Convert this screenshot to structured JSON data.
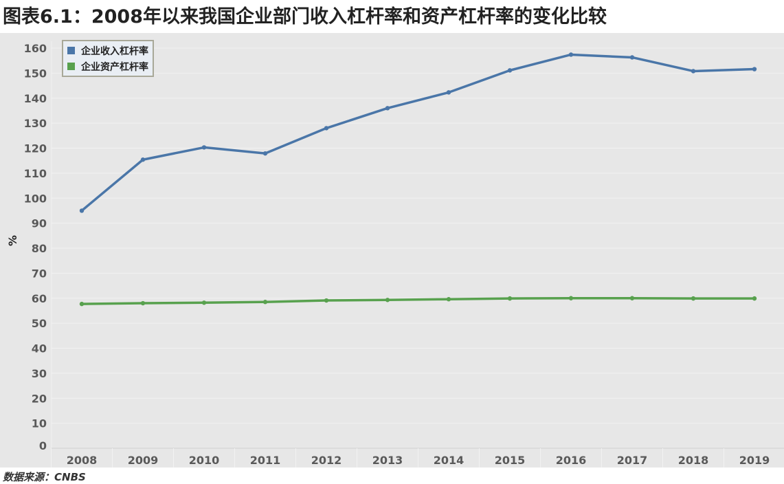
{
  "title": "图表6.1：2008年以来我国企业部门收入杠杆率和资产杠杆率的变化比较",
  "source": "数据来源：CNBS",
  "chart_data": {
    "type": "line",
    "title": "图表6.1：2008年以来我国企业部门收入杠杆率和资产杠杆率的变化比较",
    "xlabel": "",
    "ylabel": "%",
    "ylim": [
      0,
      160
    ],
    "yticks": [
      0,
      10,
      20,
      30,
      40,
      50,
      60,
      70,
      80,
      90,
      100,
      110,
      120,
      130,
      140,
      150,
      160
    ],
    "categories": [
      "2008",
      "2009",
      "2010",
      "2011",
      "2012",
      "2013",
      "2014",
      "2015",
      "2016",
      "2017",
      "2018",
      "2019"
    ],
    "grid": true,
    "legend_position": "top-left",
    "series": [
      {
        "name": "企业收入杠杆率",
        "color": "#4a76a8",
        "values": [
          95.0,
          115.4,
          120.3,
          117.9,
          128.0,
          136.0,
          142.3,
          151.1,
          157.4,
          156.3,
          150.8,
          151.6
        ]
      },
      {
        "name": "企业资产杠杆率",
        "color": "#58a14e",
        "values": [
          57.7,
          58.0,
          58.2,
          58.5,
          59.1,
          59.3,
          59.6,
          59.9,
          60.0,
          60.0,
          59.9,
          59.9
        ]
      }
    ]
  }
}
